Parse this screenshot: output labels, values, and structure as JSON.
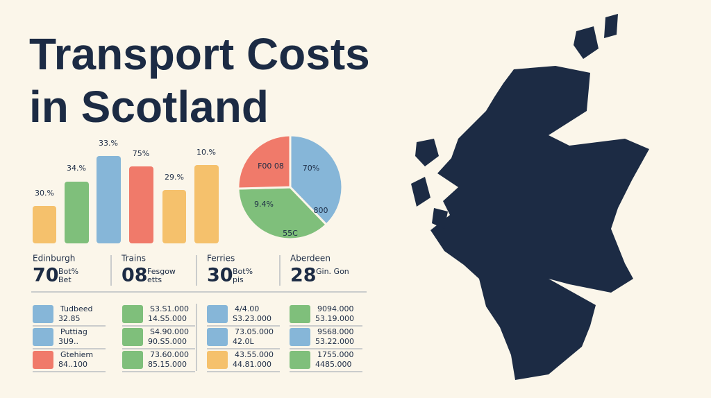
{
  "title": {
    "lines": [
      "Transport Costs",
      "in Scotland"
    ]
  },
  "bar_labels": [
    "30.%",
    "34.%",
    "33.%",
    "75%",
    "29.%",
    "10.%"
  ],
  "pie_labels": [
    "F00 08",
    "70%",
    "9.4%",
    "800",
    "55C"
  ],
  "stats": [
    {
      "label": "Edinburgh",
      "number": "70",
      "sub": [
        "Bot%",
        "Bet"
      ]
    },
    {
      "label": "Trains",
      "number": "08",
      "sub": [
        "Fesgow",
        "etts"
      ]
    },
    {
      "label": "Ferries",
      "number": "30",
      "sub": [
        "Bot%",
        "pis"
      ]
    },
    {
      "label": "Aberdeen",
      "number": "28",
      "sub": [
        "Gin. Gon"
      ]
    }
  ],
  "legend": [
    [
      [
        "Tudbeed",
        "32.85"
      ],
      [
        "Puttiag",
        "3U9.."
      ],
      [
        "Gtehiem",
        "84..100"
      ]
    ],
    [
      [
        "S3.S1.000",
        "14.S5.000"
      ],
      [
        "S4.90.000",
        "90.S5.000"
      ],
      [
        "73.60.000",
        "85.15.000"
      ]
    ],
    [
      [
        "4/4.00",
        "S3.23.000"
      ],
      [
        "73.05.000",
        "42.0L"
      ],
      [
        "43.55.000",
        "44.81.000"
      ]
    ],
    [
      [
        "9094.000",
        "53.19.000"
      ],
      [
        "9S68.000",
        "53.22.000"
      ],
      [
        "1755.000",
        "4485.000"
      ]
    ]
  ]
}
